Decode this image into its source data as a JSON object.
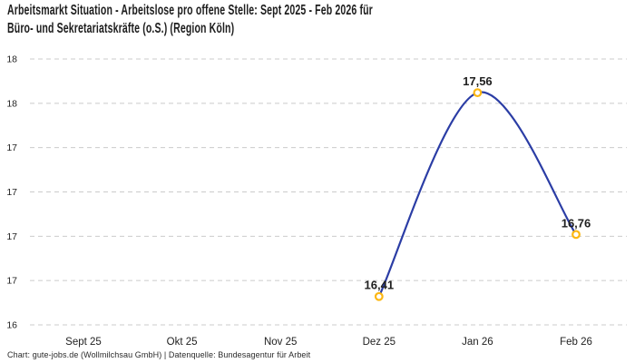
{
  "header": {
    "title_lines": [
      "Arbeitsmarkt Situation - Arbeitslose pro offene Stelle: Sept 2025 - Feb 2026 für",
      "Büro- und Sekretariatskräfte (o.S.) (Region Köln)"
    ]
  },
  "footer": {
    "credit": "Chart: gute-jobs.de (Wollmilchsau GmbH) | Datenquelle: Bundesagentur für Arbeit"
  },
  "chart_data": {
    "type": "line",
    "title": "Arbeitsmarkt Situation - Arbeitslose pro offene Stelle: Sept 2025 - Feb 2026 für Büro- und Sekretariatskräfte (o.S.) (Region Köln)",
    "categories": [
      "Sept 25",
      "Okt 25",
      "Nov 25",
      "Dez 25",
      "Jan 26",
      "Feb 26"
    ],
    "series": [
      {
        "name": "Arbeitslose pro offene Stelle",
        "values": [
          null,
          null,
          null,
          16.41,
          17.56,
          16.76
        ],
        "point_labels": [
          null,
          null,
          null,
          "16,41",
          "17,56",
          "16,76"
        ]
      }
    ],
    "y_axis": {
      "min": 16.25,
      "max": 17.75,
      "step": 0.25,
      "tick_labels_top_to_bottom": [
        "18",
        "18",
        "17",
        "17",
        "17",
        "17",
        "16"
      ]
    },
    "x_axis": {
      "label": "",
      "tick_labels": [
        "Sept 25",
        "Okt 25",
        "Nov 25",
        "Dez 25",
        "Jan 26",
        "Feb 26"
      ]
    },
    "grid": "dashed-horizontal",
    "legend": "none",
    "line_style": "smooth-spline",
    "colors": {
      "line": "#2b3da5",
      "marker": "#fcb712",
      "marker_fill": "#ffffff",
      "grid": "#cbcbcb",
      "text": "#1f1f1f"
    }
  }
}
